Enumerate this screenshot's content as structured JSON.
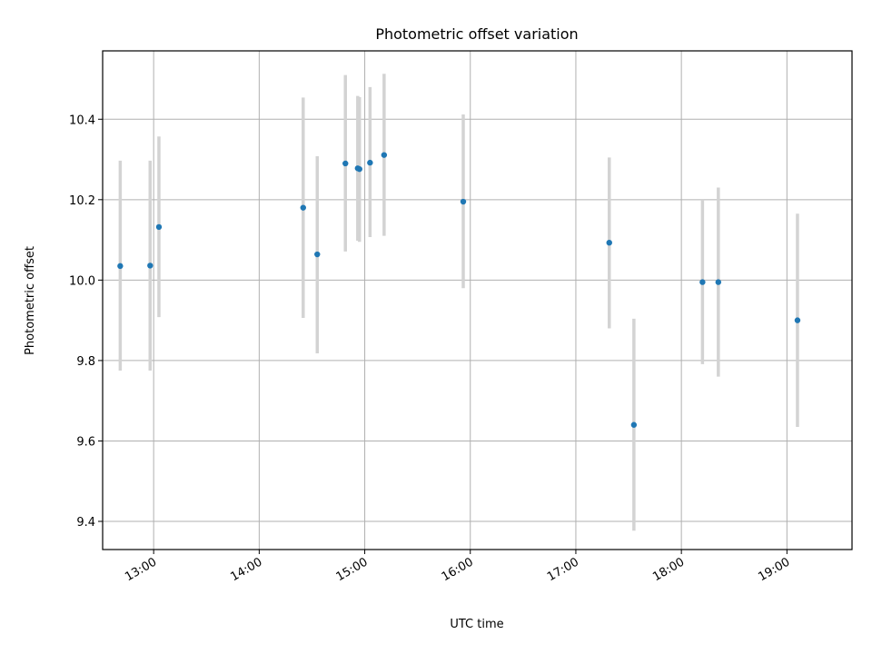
{
  "chart_data": {
    "type": "scatter",
    "title": "Photometric offset variation",
    "xlabel": "UTC time",
    "ylabel": "Photometric offset",
    "x_tick_labels": [
      "13:00",
      "14:00",
      "15:00",
      "16:00",
      "17:00",
      "18:00",
      "19:00"
    ],
    "x_ticks": [
      "13:00",
      "14:00",
      "15:00",
      "16:00",
      "17:00",
      "18:00",
      "19:00"
    ],
    "y_tick_labels": [
      "9.4",
      "9.6",
      "9.8",
      "10.0",
      "10.2",
      "10.4"
    ],
    "y_ticks": [
      9.4,
      9.6,
      9.8,
      10.0,
      10.2,
      10.4
    ],
    "xlim": [
      "12:31",
      "19:37"
    ],
    "ylim": [
      9.33,
      10.57
    ],
    "grid": true,
    "points": [
      {
        "time": "12:41",
        "y": 10.035,
        "err_low": 9.775,
        "err_high": 10.297
      },
      {
        "time": "12:58",
        "y": 10.036,
        "err_low": 9.775,
        "err_high": 10.297
      },
      {
        "time": "13:03",
        "y": 10.132,
        "err_low": 9.908,
        "err_high": 10.357
      },
      {
        "time": "14:25",
        "y": 10.18,
        "err_low": 9.906,
        "err_high": 10.454
      },
      {
        "time": "14:33",
        "y": 10.064,
        "err_low": 9.818,
        "err_high": 10.308
      },
      {
        "time": "14:49",
        "y": 10.29,
        "err_low": 10.071,
        "err_high": 10.51
      },
      {
        "time": "14:56",
        "y": 10.278,
        "err_low": 10.098,
        "err_high": 10.458
      },
      {
        "time": "14:57",
        "y": 10.276,
        "err_low": 10.095,
        "err_high": 10.455
      },
      {
        "time": "15:03",
        "y": 10.292,
        "err_low": 10.107,
        "err_high": 10.48
      },
      {
        "time": "15:11",
        "y": 10.311,
        "err_low": 10.11,
        "err_high": 10.513
      },
      {
        "time": "15:56",
        "y": 10.195,
        "err_low": 9.98,
        "err_high": 10.412
      },
      {
        "time": "17:19",
        "y": 10.093,
        "err_low": 9.88,
        "err_high": 10.305
      },
      {
        "time": "17:33",
        "y": 9.64,
        "err_low": 9.377,
        "err_high": 9.904
      },
      {
        "time": "18:12",
        "y": 9.995,
        "err_low": 9.791,
        "err_high": 10.2
      },
      {
        "time": "18:21",
        "y": 9.995,
        "err_low": 9.76,
        "err_high": 10.23
      },
      {
        "time": "19:06",
        "y": 9.9,
        "err_low": 9.635,
        "err_high": 10.165
      }
    ],
    "colors": {
      "point": "#1f77b4",
      "errorbar": "#d3d3d3",
      "grid": "#b0b0b0"
    }
  }
}
